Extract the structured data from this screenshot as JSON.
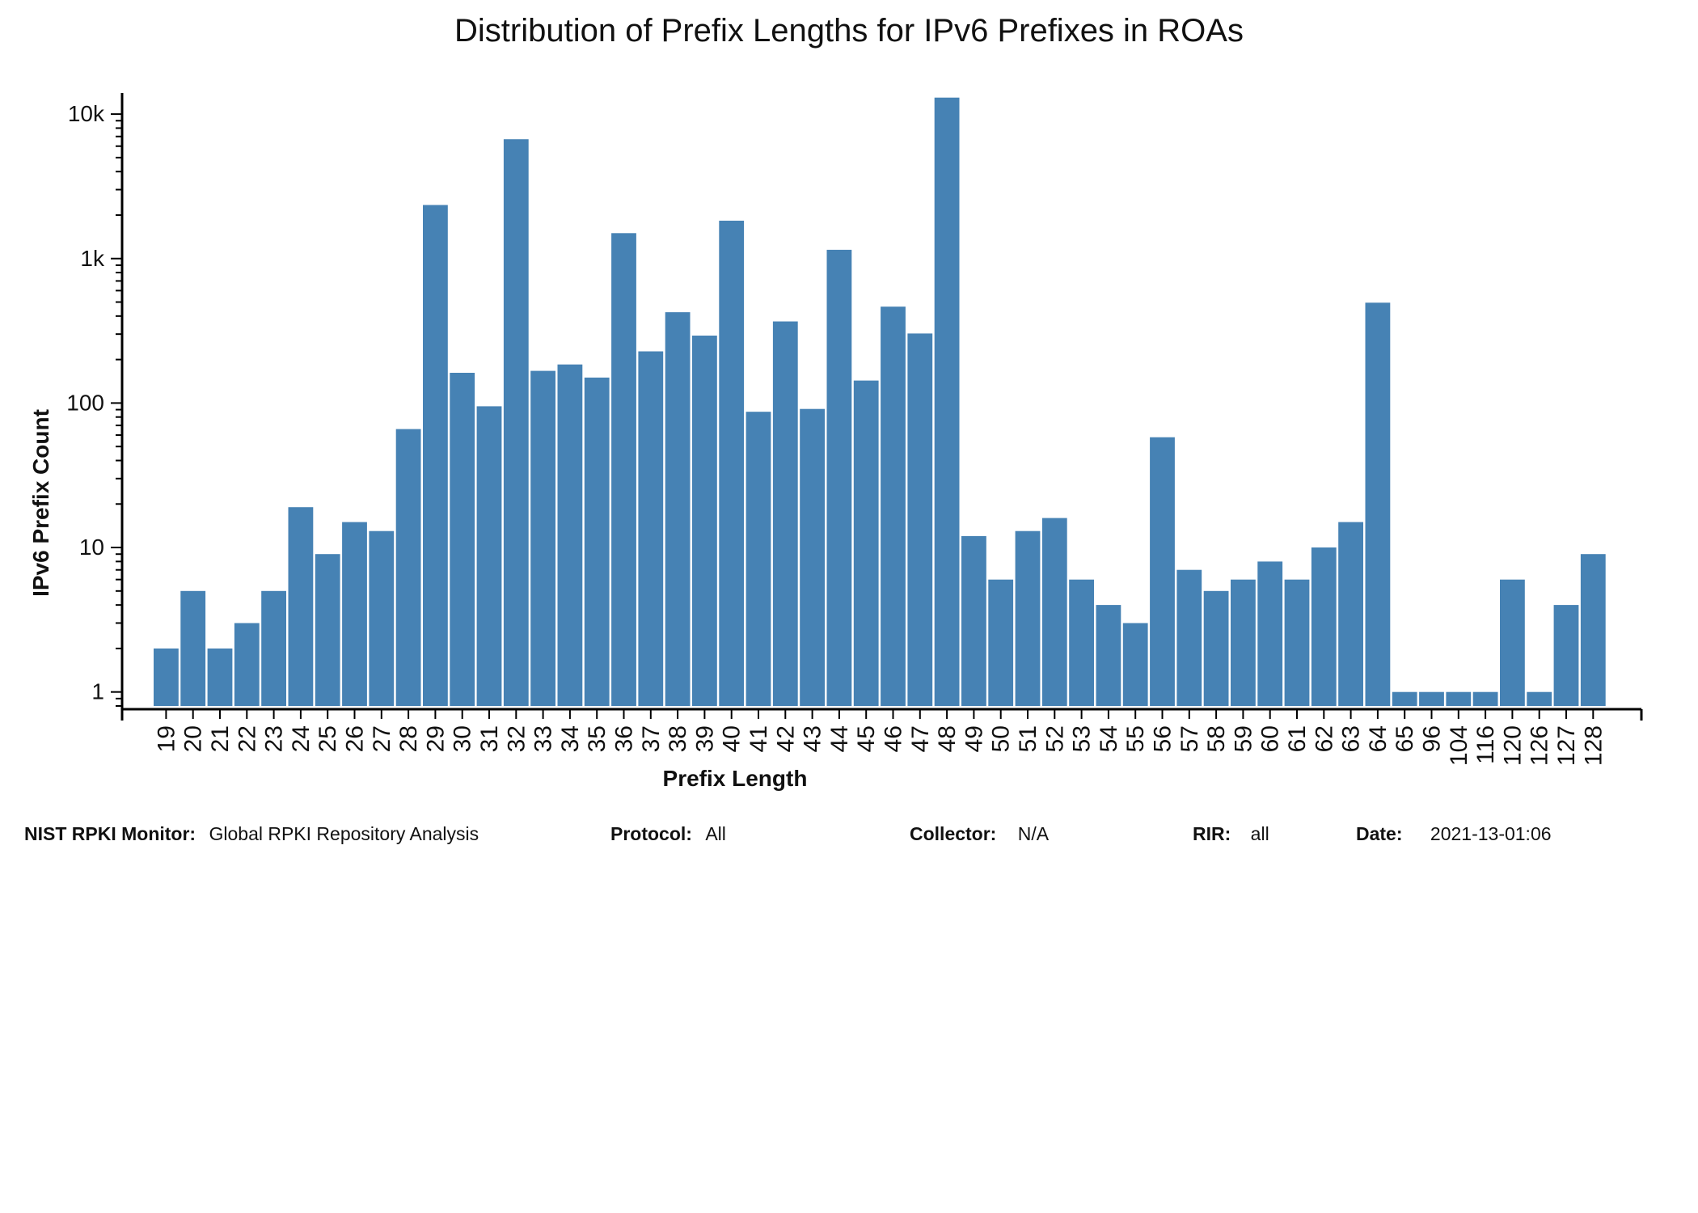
{
  "chart_data": {
    "type": "bar",
    "title": "Distribution of Prefix Lengths for IPv6 Prefixes in ROAs",
    "xlabel": "Prefix Length",
    "ylabel": "IPv6 Prefix Count",
    "yscale": "log",
    "ylim": [
      0.8,
      14000
    ],
    "yticks": [
      {
        "value": 1,
        "label": "1"
      },
      {
        "value": 10,
        "label": "10"
      },
      {
        "value": 100,
        "label": "100"
      },
      {
        "value": 1000,
        "label": "1k"
      },
      {
        "value": 10000,
        "label": "10k"
      }
    ],
    "bar_color": "#4682b4",
    "grid": false,
    "legend": "none",
    "categories": [
      "19",
      "20",
      "21",
      "22",
      "23",
      "24",
      "25",
      "26",
      "27",
      "28",
      "29",
      "30",
      "31",
      "32",
      "33",
      "34",
      "35",
      "36",
      "37",
      "38",
      "39",
      "40",
      "41",
      "42",
      "43",
      "44",
      "45",
      "46",
      "47",
      "48",
      "49",
      "50",
      "51",
      "52",
      "53",
      "54",
      "55",
      "56",
      "57",
      "58",
      "59",
      "60",
      "61",
      "62",
      "63",
      "64",
      "65",
      "96",
      "104",
      "116",
      "120",
      "126",
      "127",
      "128"
    ],
    "values": [
      2,
      5,
      2,
      3,
      5,
      19,
      9,
      15,
      13,
      66,
      2350,
      162,
      95,
      6700,
      167,
      185,
      150,
      1500,
      228,
      425,
      293,
      1830,
      87,
      367,
      91,
      1150,
      143,
      465,
      303,
      13000,
      12,
      6,
      13,
      16,
      6,
      4,
      3,
      58,
      7,
      5,
      6,
      8,
      6,
      10,
      15,
      495,
      1,
      1,
      1,
      1,
      6,
      1,
      4,
      9
    ]
  },
  "footer": {
    "monitor_label": "NIST RPKI Monitor:",
    "monitor_value": "Global RPKI Repository Analysis",
    "protocol_label": "Protocol:",
    "protocol_value": "All",
    "collector_label": "Collector:",
    "collector_value": "N/A",
    "rir_label": "RIR:",
    "rir_value": "all",
    "date_label": "Date:",
    "date_value": "2021-13-01:06"
  }
}
